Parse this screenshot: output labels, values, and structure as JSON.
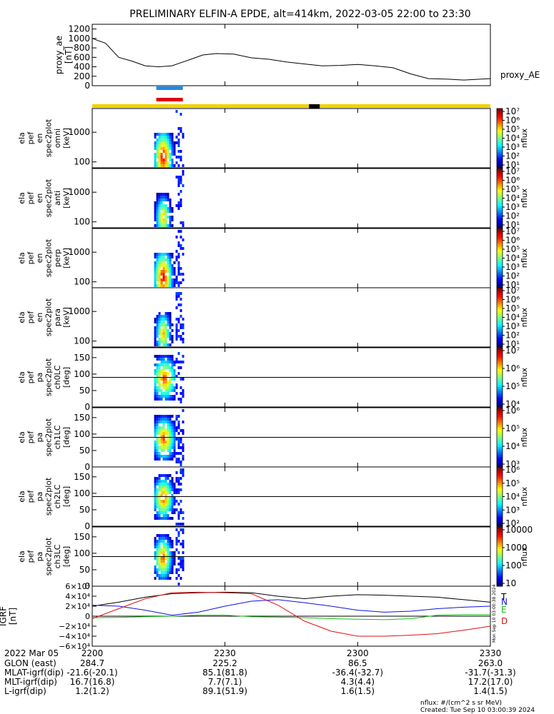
{
  "title": "PRELIMINARY ELFIN-A EPDE, alt=414km, 2022-03-05 22:00 to 23:30",
  "colors": {
    "ae_line": "#000000",
    "bar_blue": "#1e8ce8",
    "bar_red": "#e00000",
    "status_yellow": "#f2d200",
    "status_black": "#000000",
    "grf_T": "#000000",
    "grf_N": "#1010e0",
    "grf_E": "#10c010",
    "grf_D": "#e01010"
  },
  "time_ticks": [
    "2200",
    "2230",
    "2300",
    "2330"
  ],
  "proxy_ae": {
    "ylabel_lines": [
      "proxy_ae",
      "[nT]"
    ],
    "legend": "proxy_AE",
    "ticks": [
      "1200",
      "1000",
      "800",
      "600",
      "400",
      "200",
      "0"
    ]
  },
  "spec_panels": [
    {
      "label_lines": [
        "ela",
        "pef",
        "en",
        "spec2plot",
        "omni",
        "[keV]"
      ],
      "ticks": [
        "1000",
        "100"
      ],
      "cbar_label": "nflux",
      "cbar_ticks": [
        "10⁷",
        "10⁶",
        "10⁵",
        "10⁴",
        "10³",
        "10²",
        "10¹"
      ]
    },
    {
      "label_lines": [
        "ela",
        "pef",
        "en",
        "spec2plot",
        "anti",
        "[keV]"
      ],
      "ticks": [
        "1000",
        "100"
      ],
      "cbar_label": "nflux",
      "cbar_ticks": [
        "10⁷",
        "10⁶",
        "10⁵",
        "10⁴",
        "10³",
        "10²",
        "10¹"
      ]
    },
    {
      "label_lines": [
        "ela",
        "pef",
        "en",
        "spec2plot",
        "perp",
        "[keV]"
      ],
      "ticks": [
        "1000",
        "100"
      ],
      "cbar_label": "nflux",
      "cbar_ticks": [
        "10⁷",
        "10⁶",
        "10⁵",
        "10⁴",
        "10³",
        "10²",
        "10¹"
      ]
    },
    {
      "label_lines": [
        "ela",
        "pef",
        "en",
        "spec2plot",
        "para",
        "[keV]"
      ],
      "ticks": [
        "1000",
        "100"
      ],
      "cbar_label": "nflux",
      "cbar_ticks": [
        "10⁷",
        "10⁶",
        "10⁵",
        "10⁴",
        "10³",
        "10²",
        "10¹"
      ]
    },
    {
      "label_lines": [
        "ela",
        "pef",
        "pa",
        "spec2plot",
        "ch0LC",
        "[deg]"
      ],
      "ticks": [
        "150",
        "100",
        "50",
        "0"
      ],
      "cbar_label": "nflux",
      "cbar_ticks": [
        "10⁷",
        "10⁶",
        "10⁵",
        "10⁴"
      ]
    },
    {
      "label_lines": [
        "ela",
        "pef",
        "pa",
        "spec2plot",
        "ch1LC",
        "[deg]"
      ],
      "ticks": [
        "150",
        "100",
        "50",
        "0"
      ],
      "cbar_label": "nflux",
      "cbar_ticks": [
        "10⁶",
        "10⁵",
        "10⁴",
        "10³"
      ]
    },
    {
      "label_lines": [
        "ela",
        "pef",
        "pa",
        "spec2plot",
        "ch2LC",
        "[deg]"
      ],
      "ticks": [
        "150",
        "100",
        "50",
        "0"
      ],
      "cbar_label": "nflux",
      "cbar_ticks": [
        "10⁶",
        "10⁵",
        "10⁴",
        "10³",
        "10²"
      ]
    },
    {
      "label_lines": [
        "ela",
        "pef",
        "pa",
        "spec2plot",
        "ch3LC",
        "[deg]"
      ],
      "ticks": [
        "150",
        "100",
        "50",
        "0"
      ],
      "cbar_label": "nflux",
      "cbar_ticks": [
        "10000",
        "1000",
        "100",
        "10"
      ]
    }
  ],
  "igrf": {
    "ylabel_lines": [
      "IGRF",
      "[nT]"
    ],
    "ticks": [
      "6×10⁴",
      "4×10⁴",
      "2×10⁴",
      "0",
      "−2×10⁴",
      "−4×10⁴",
      "−6×10⁴"
    ],
    "legend": [
      "T",
      "N",
      "E",
      "D"
    ]
  },
  "ephemeris": {
    "rows": [
      {
        "label": "2022 Mar 05",
        "values": [
          "2200",
          "2230",
          "2300",
          "2330"
        ]
      },
      {
        "label": "GLON (east)",
        "values": [
          "284.7",
          "225.2",
          "86.5",
          "263.0"
        ]
      },
      {
        "label": "MLAT-igrf(dip)",
        "values": [
          "-21.6(-20.1)",
          "85.1(81.8)",
          "-36.4(-32.7)",
          "-31.7(-31.3)"
        ]
      },
      {
        "label": "MLT-igrf(dip)",
        "values": [
          "16.7(16.8)",
          "7.7(7.1)",
          "4.3(4.4)",
          "17.2(17.0)"
        ]
      },
      {
        "label": "L-igrf(dip)",
        "values": [
          "1.2(1.2)",
          "89.1(51.9)",
          "1.6(1.5)",
          "1.4(1.5)"
        ]
      }
    ]
  },
  "footer": {
    "units": "nflux: #/(cm^2 s sr MeV)",
    "created": "Created: Tue Sep 10 03:00:39 2024",
    "side_stamp": "Mon Sep 10 03:00:38 2024"
  },
  "chart_data": [
    {
      "type": "line",
      "name": "proxy_AE",
      "x_unit": "UT HHMM",
      "ylim": [
        0,
        1300
      ],
      "x": [
        "2200",
        "2203",
        "2206",
        "2209",
        "2212",
        "2215",
        "2218",
        "2222",
        "2225",
        "2228",
        "2232",
        "2236",
        "2240",
        "2244",
        "2248",
        "2252",
        "2256",
        "2300",
        "2304",
        "2308",
        "2312",
        "2316",
        "2320",
        "2324",
        "2328",
        "2330"
      ],
      "values": [
        1000,
        900,
        600,
        520,
        420,
        400,
        420,
        550,
        650,
        680,
        670,
        590,
        560,
        500,
        460,
        420,
        430,
        450,
        420,
        380,
        250,
        150,
        140,
        120,
        140,
        150
      ]
    },
    {
      "type": "line",
      "name": "IGRF",
      "x_unit": "UT HHMM",
      "ylim": [
        -60000,
        60000
      ],
      "x": [
        "2200",
        "2206",
        "2212",
        "2218",
        "2224",
        "2230",
        "2236",
        "2242",
        "2248",
        "2254",
        "2300",
        "2306",
        "2312",
        "2318",
        "2324",
        "2330"
      ],
      "series": [
        {
          "name": "T",
          "values": [
            20000,
            28000,
            38000,
            45000,
            47000,
            48000,
            47000,
            40000,
            35000,
            40000,
            43000,
            42000,
            40000,
            38000,
            33000,
            28000
          ]
        },
        {
          "name": "N",
          "values": [
            22000,
            20000,
            12000,
            2000,
            8000,
            20000,
            30000,
            33000,
            27000,
            20000,
            12000,
            8000,
            10000,
            15000,
            18000,
            20000
          ]
        },
        {
          "name": "E",
          "values": [
            -3000,
            -2500,
            -1000,
            0,
            2000,
            2000,
            -1000,
            -2000,
            -3000,
            -5000,
            -6000,
            -7000,
            -5000,
            2000,
            3000,
            3000
          ]
        },
        {
          "name": "D",
          "values": [
            -5000,
            15000,
            35000,
            47000,
            48000,
            47000,
            45000,
            22000,
            -10000,
            -30000,
            -40000,
            -40000,
            -38000,
            -35000,
            -28000,
            -20000
          ]
        }
      ]
    },
    {
      "type": "heatmap",
      "name": "spectrograms",
      "active_interval": [
        "2214",
        "2220"
      ]
    }
  ]
}
